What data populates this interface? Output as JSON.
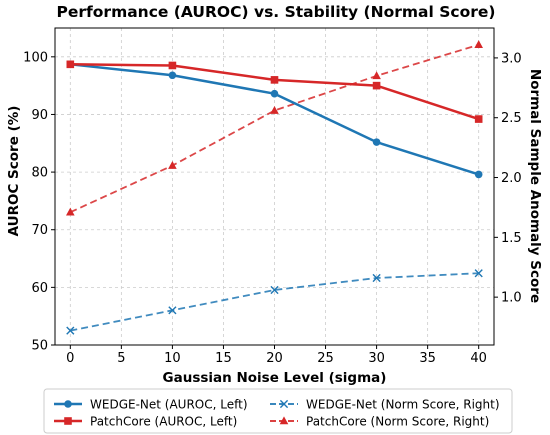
{
  "chart_data": {
    "type": "line",
    "title": "Performance (AUROC) vs. Stability (Normal Score)",
    "xlabel": "Gaussian Noise Level (sigma)",
    "ylabel_left": "AUROC Score (%)",
    "ylabel_right": "Normal Sample Anomaly Score",
    "x": [
      0,
      10,
      20,
      30,
      40
    ],
    "xlim": [
      -1.5,
      41.5
    ],
    "xticks": [
      0,
      5,
      10,
      15,
      20,
      25,
      30,
      35,
      40
    ],
    "ylim_left": [
      50,
      105
    ],
    "yticks_left": [
      50,
      60,
      70,
      80,
      90,
      100
    ],
    "ylim_right": [
      0.6,
      3.25
    ],
    "yticks_right": [
      1.0,
      1.5,
      2.0,
      2.5,
      3.0
    ],
    "ytick_labels_right": [
      "1.0",
      "1.5",
      "2.0",
      "2.5",
      "3.0"
    ],
    "grid": true,
    "legend_placement": "bottom-center",
    "series": [
      {
        "name": "WEDGE-Net (AUROC, Left)",
        "axis": "left",
        "color": "#1f77b4",
        "linestyle": "solid",
        "marker": "circle",
        "values": [
          98.7,
          96.8,
          93.6,
          85.2,
          79.6
        ]
      },
      {
        "name": "PatchCore (AUROC, Left)",
        "axis": "left",
        "color": "#d62728",
        "linestyle": "solid",
        "marker": "square",
        "values": [
          98.7,
          98.5,
          96.0,
          95.0,
          89.2
        ]
      },
      {
        "name": "WEDGE-Net (Norm Score, Right)",
        "axis": "right",
        "color": "#1f77b4",
        "linestyle": "dashed",
        "marker": "x",
        "values": [
          0.72,
          0.89,
          1.06,
          1.16,
          1.2
        ]
      },
      {
        "name": "PatchCore (Norm Score, Right)",
        "axis": "right",
        "color": "#d62728",
        "linestyle": "dashed",
        "marker": "triangle",
        "values": [
          1.71,
          2.1,
          2.56,
          2.85,
          3.11
        ]
      }
    ]
  }
}
